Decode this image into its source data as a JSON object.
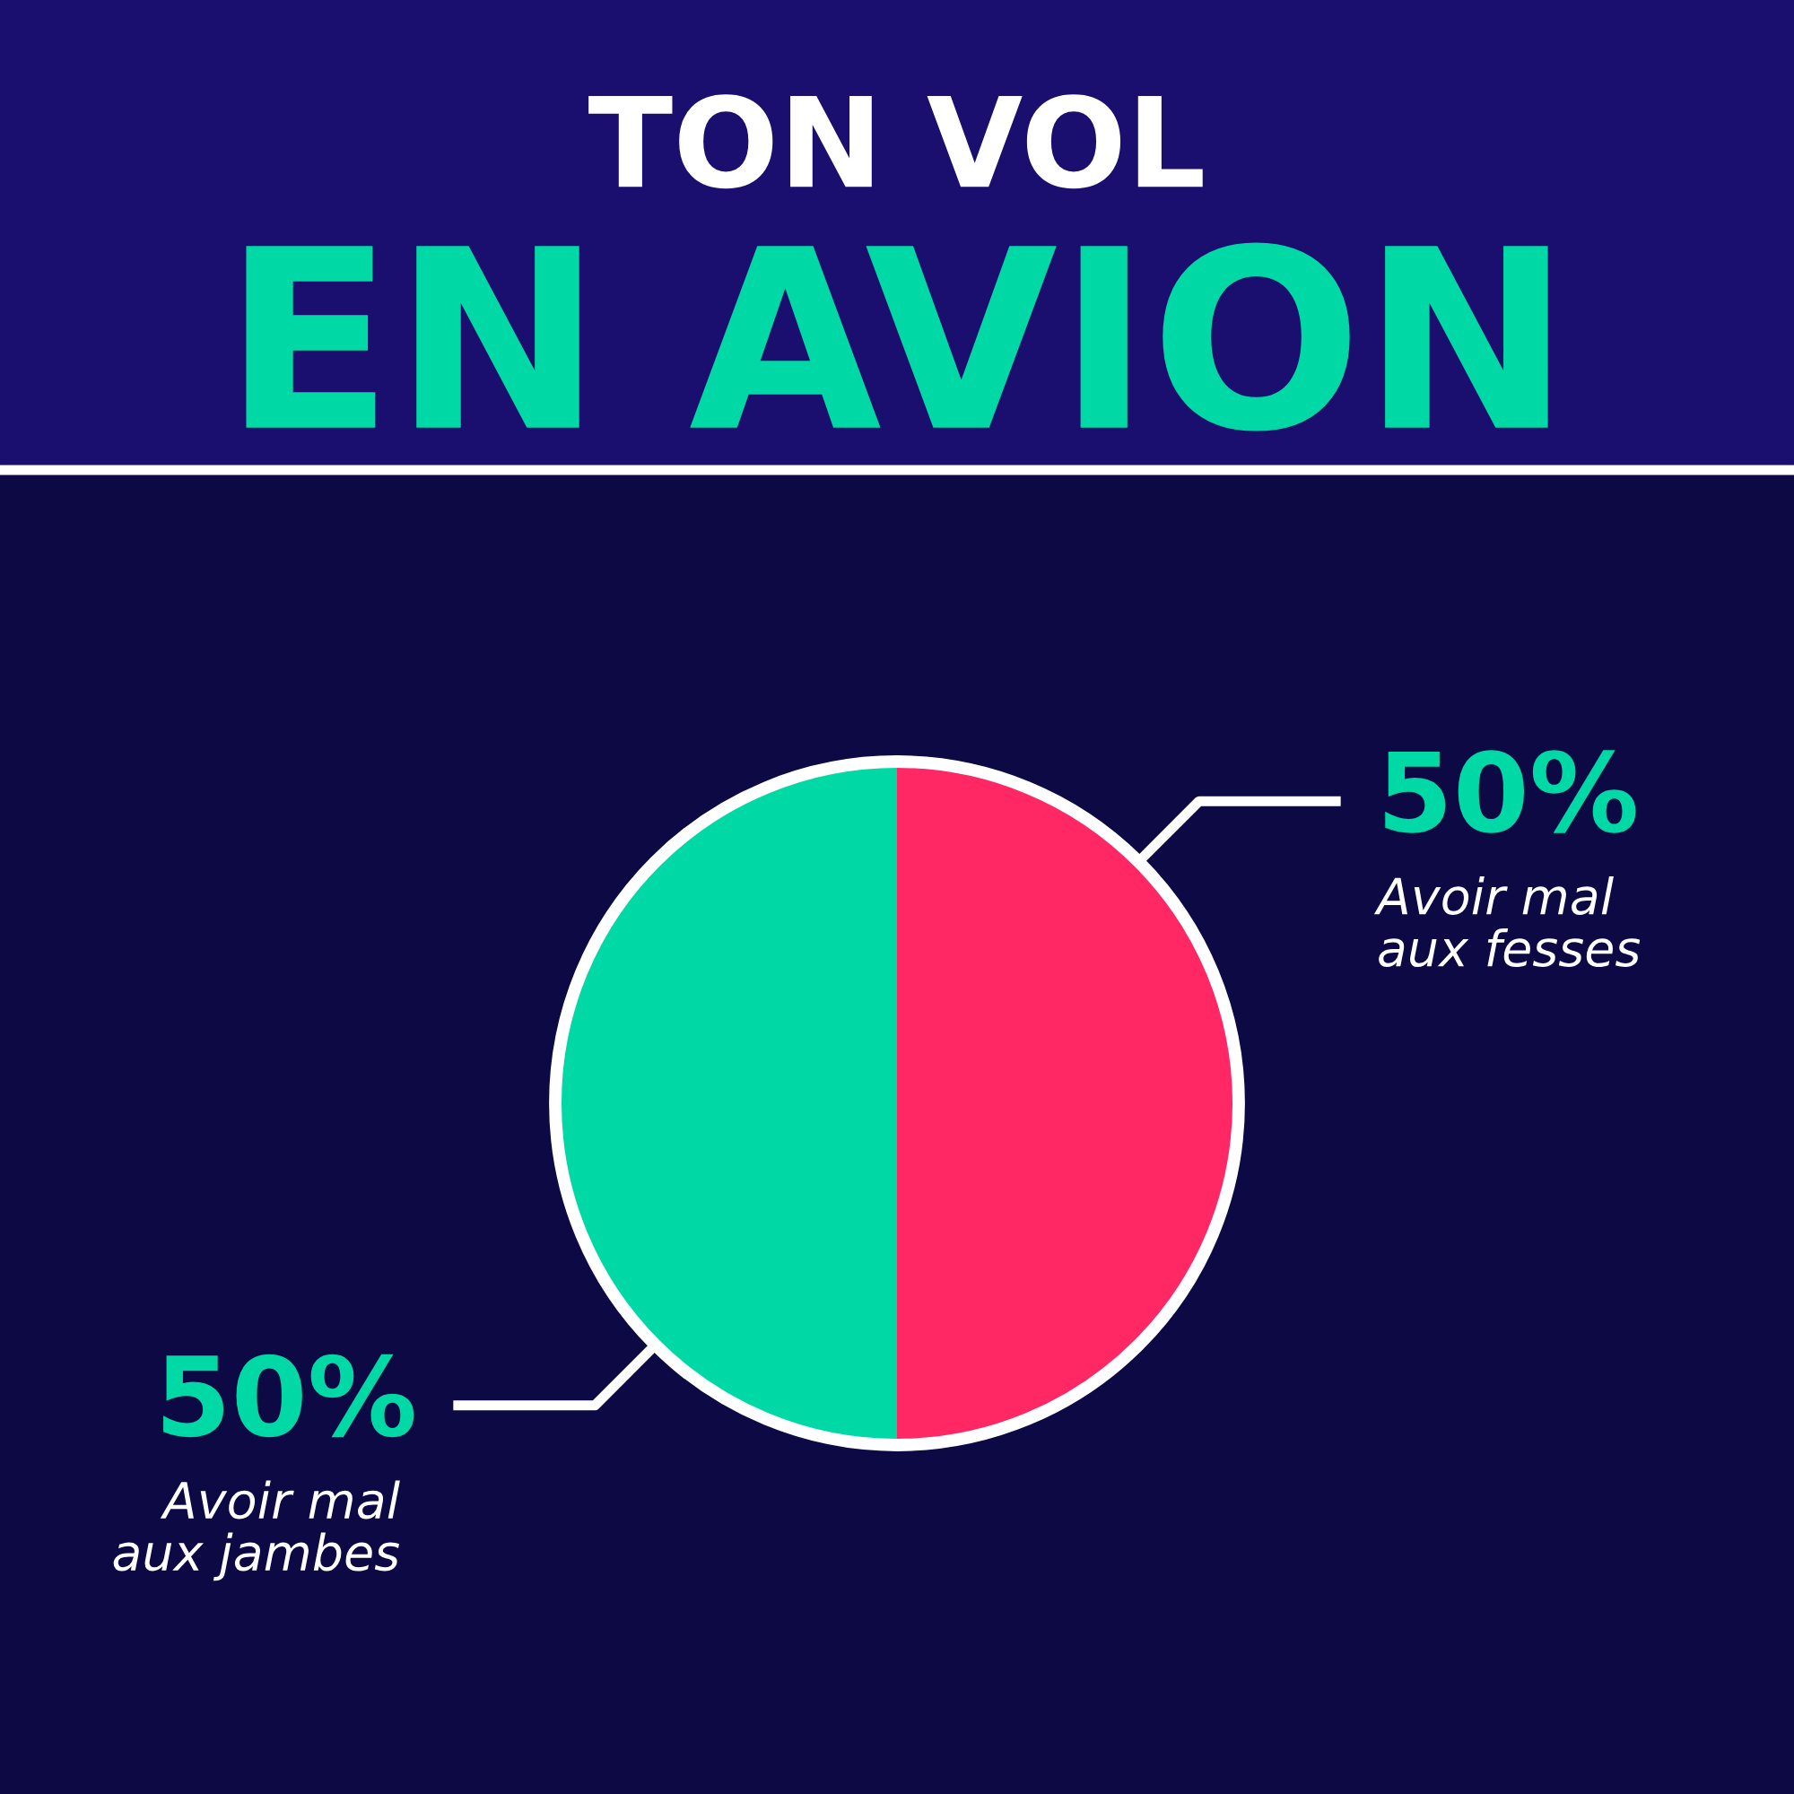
{
  "chart_data": {
    "type": "pie",
    "title": "TON VOL",
    "subtitle": "EN AVION",
    "categories": [
      "Avoir mal\naux fesses",
      "Avoir mal\naux jambes"
    ],
    "values": [
      50,
      50
    ],
    "colors": [
      "#ff2864",
      "#00d9a5"
    ],
    "value_labels": [
      "50%",
      "50%"
    ],
    "legend": false
  }
}
